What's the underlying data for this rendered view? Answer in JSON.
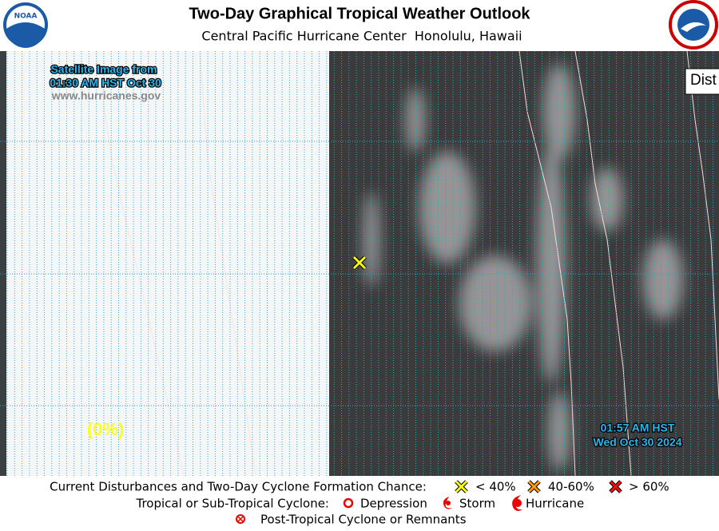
{
  "header": {
    "title": "Two-Day Graphical Tropical Weather Outlook",
    "subtitle": "Central Pacific Hurricane Center  Honolulu, Hawaii",
    "noaa_logo": "NOAA"
  },
  "map": {
    "satellite_label": [
      "Satellite Image from",
      "01:30 AM HST Oct 30"
    ],
    "website": "www.hurricanes.gov",
    "box_label": "Dist",
    "area_chance": "(0%)",
    "timestamp": [
      "01:57 AM HST",
      "Wed Oct 30 2024"
    ]
  },
  "legend": {
    "disturbances": "Current Disturbances and Two-Day Cyclone Formation Chance:",
    "chances": [
      "< 40%",
      "40-60%",
      "> 60%"
    ],
    "cyclone": "Tropical or Sub-Tropical Cyclone:",
    "cyclone_types": [
      "Depression",
      "Storm",
      "Hurricane"
    ],
    "post_tropical": "Post-Tropical Cyclone or Remnants"
  }
}
